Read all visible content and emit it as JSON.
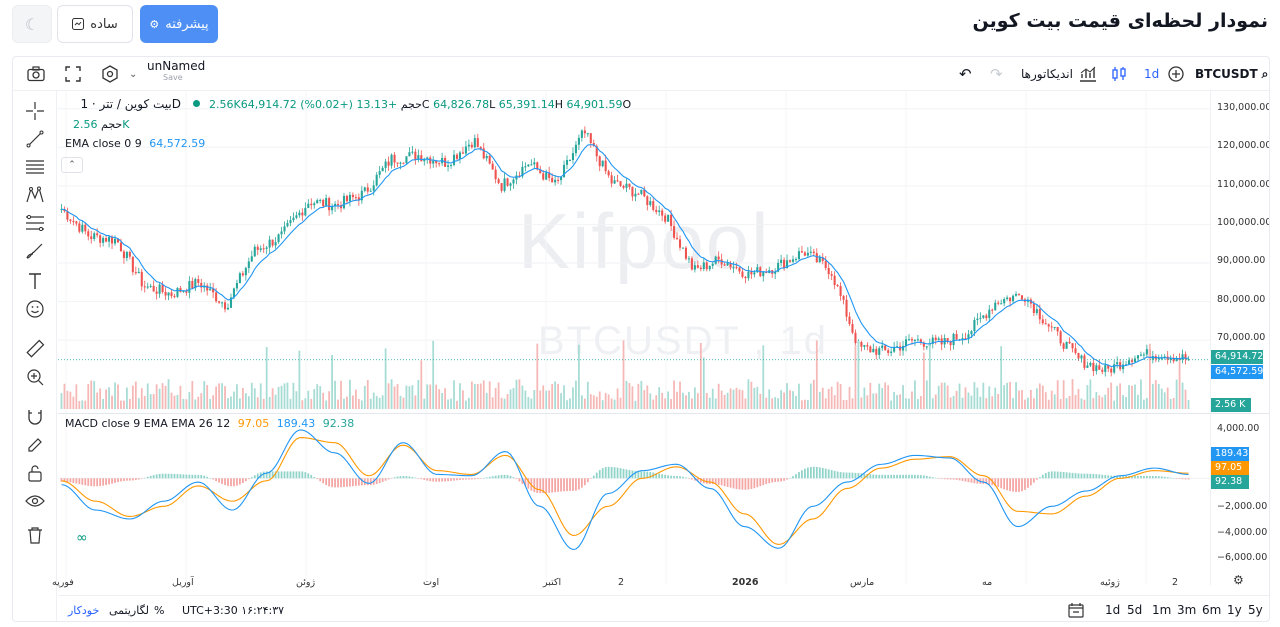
{
  "header": {
    "title": "نمودار لحظه‌ای قیمت بیت کوین",
    "advanced_label": "پیشرفته",
    "simple_label": "ساده"
  },
  "topbar": {
    "chart_name": "unNamed",
    "save_label": "Save",
    "symbol": "BTCUSDT",
    "interval": "1d",
    "indicators_label": "اندیکاتورها"
  },
  "legend": {
    "symbol_title": "بیت کوین / تتر · 1D",
    "open_label": "O",
    "open_value": "64,901.59",
    "high_label": "H",
    "high_value": "65,391.14",
    "low_label": "L",
    "low_value": "64,826.78",
    "close_label": "C",
    "close_value": "64,914.72",
    "change": "+13.13 (+0.02%)",
    "volume_label": "حجم",
    "volume_value": "2.56K",
    "volume_row_label": "حجم",
    "volume_row_value": "2.56K",
    "ema_label": "EMA close 0 9",
    "ema_value": "64,572.59",
    "macd_label": "MACD close 9 EMA EMA 26 12",
    "macd_signal_value": "97.05",
    "macd_line_value": "189.43",
    "macd_hist_value": "92.38"
  },
  "watermark": {
    "line1": "Kifpool",
    "line2": "BTCUSDT , 1d"
  },
  "price_scale": {
    "labels": [
      "130,000.00",
      "120,000.00",
      "110,000.00",
      "100,000.00",
      "90,000.00",
      "80,000.00",
      "70,000.00"
    ],
    "last_price": "64,914.72",
    "ema_price": "64,572.59",
    "volume_tag": "2.56 K"
  },
  "macd_scale": {
    "labels": [
      "4,000.00",
      "−2,000.00",
      "−4,000.00",
      "−6,000.00"
    ],
    "macd_tag": "189.43",
    "signal_tag": "97.05",
    "hist_tag": "92.38"
  },
  "time_axis": {
    "labels": [
      "فوریه",
      "آوریل",
      "ژوئن",
      "اوت",
      "اکتبر",
      "2",
      "2026",
      "مارس",
      "مه",
      "ژوئیه",
      "2"
    ]
  },
  "bottom_bar": {
    "timeframes": [
      "1d",
      "5d",
      "1m",
      "3m",
      "6m",
      "1y",
      "5y"
    ],
    "timezone": "UTC+3:30 ۱۶:۲۴:۳۷",
    "percent_label": "%",
    "log_label": "لگاریتمی",
    "auto_label": "خودکار"
  },
  "colors": {
    "accent": "#4d8ff5",
    "up": "#26a69a",
    "down": "#ef5350",
    "ema": "#2196f3",
    "macd": "#2196f3",
    "signal": "#ff9800"
  },
  "chart_data": {
    "type": "candlestick",
    "symbol": "BTCUSDT",
    "interval": "1d",
    "price_axis": {
      "min": 62000,
      "max": 132000,
      "ticks": [
        70000,
        80000,
        90000,
        100000,
        110000,
        120000,
        130000
      ]
    },
    "price_series": [
      {
        "x": "فوریه",
        "close": 104000
      },
      {
        "x": "",
        "close": 97000
      },
      {
        "x": "",
        "close": 96000
      },
      {
        "x": "",
        "close": 84000
      },
      {
        "x": "",
        "close": 82000
      },
      {
        "x": "آوریل",
        "close": 85000
      },
      {
        "x": "",
        "close": 79000
      },
      {
        "x": "",
        "close": 93000
      },
      {
        "x": "",
        "close": 97000
      },
      {
        "x": "ژوئن",
        "close": 106000
      },
      {
        "x": "",
        "close": 105000
      },
      {
        "x": "",
        "close": 108000
      },
      {
        "x": "",
        "close": 117000
      },
      {
        "x": "",
        "close": 118000
      },
      {
        "x": "اوت",
        "close": 116000
      },
      {
        "x": "",
        "close": 122000
      },
      {
        "x": "",
        "close": 110000
      },
      {
        "x": "",
        "close": 116000
      },
      {
        "x": "",
        "close": 110000
      },
      {
        "x": "اکتبر",
        "close": 124000
      },
      {
        "x": "",
        "close": 111000
      },
      {
        "x": "",
        "close": 108000
      },
      {
        "x": "",
        "close": 102000
      },
      {
        "x": "2",
        "close": 88000
      },
      {
        "x": "",
        "close": 91000
      },
      {
        "x": "",
        "close": 87000
      },
      {
        "x": "",
        "close": 89000
      },
      {
        "x": "2026",
        "close": 93000
      },
      {
        "x": "",
        "close": 88000
      },
      {
        "x": "",
        "close": 68000
      },
      {
        "x": "",
        "close": 67000
      },
      {
        "x": "مارس",
        "close": 70000
      },
      {
        "x": "",
        "close": 69000
      },
      {
        "x": "",
        "close": 72000
      },
      {
        "x": "",
        "close": 80000
      },
      {
        "x": "مه",
        "close": 82000
      },
      {
        "x": "",
        "close": 73000
      },
      {
        "x": "",
        "close": 65000
      },
      {
        "x": "",
        "close": 62000
      },
      {
        "x": "ژوئیه",
        "close": 66000
      },
      {
        "x": "",
        "close": 66500
      },
      {
        "x": "2",
        "close": 65000
      }
    ],
    "macd_axis": {
      "min": -6500,
      "max": 4500
    },
    "macd_series": [
      {
        "name": "MACD",
        "values": [
          -500,
          -2500,
          -3200,
          -1800,
          -300,
          -2500,
          400,
          3800,
          2000,
          -400,
          2800,
          300,
          200,
          2100,
          -2200,
          -5600,
          -1200,
          600,
          1100,
          -800,
          -3800,
          -5500,
          -2200,
          -300,
          1100,
          1800,
          1600,
          -300,
          -3800,
          -2200,
          -1000,
          200,
          800,
          300
        ]
      },
      {
        "name": "Signal",
        "values": [
          -200,
          -1800,
          -3000,
          -2200,
          -600,
          -1800,
          -200,
          3200,
          2800,
          200,
          2600,
          600,
          300,
          1800,
          -900,
          -4500,
          -2200,
          0,
          900,
          -300,
          -2800,
          -5200,
          -3200,
          -800,
          800,
          1500,
          1700,
          200,
          -2600,
          -2800,
          -1400,
          0,
          600,
          400
        ]
      }
    ]
  }
}
